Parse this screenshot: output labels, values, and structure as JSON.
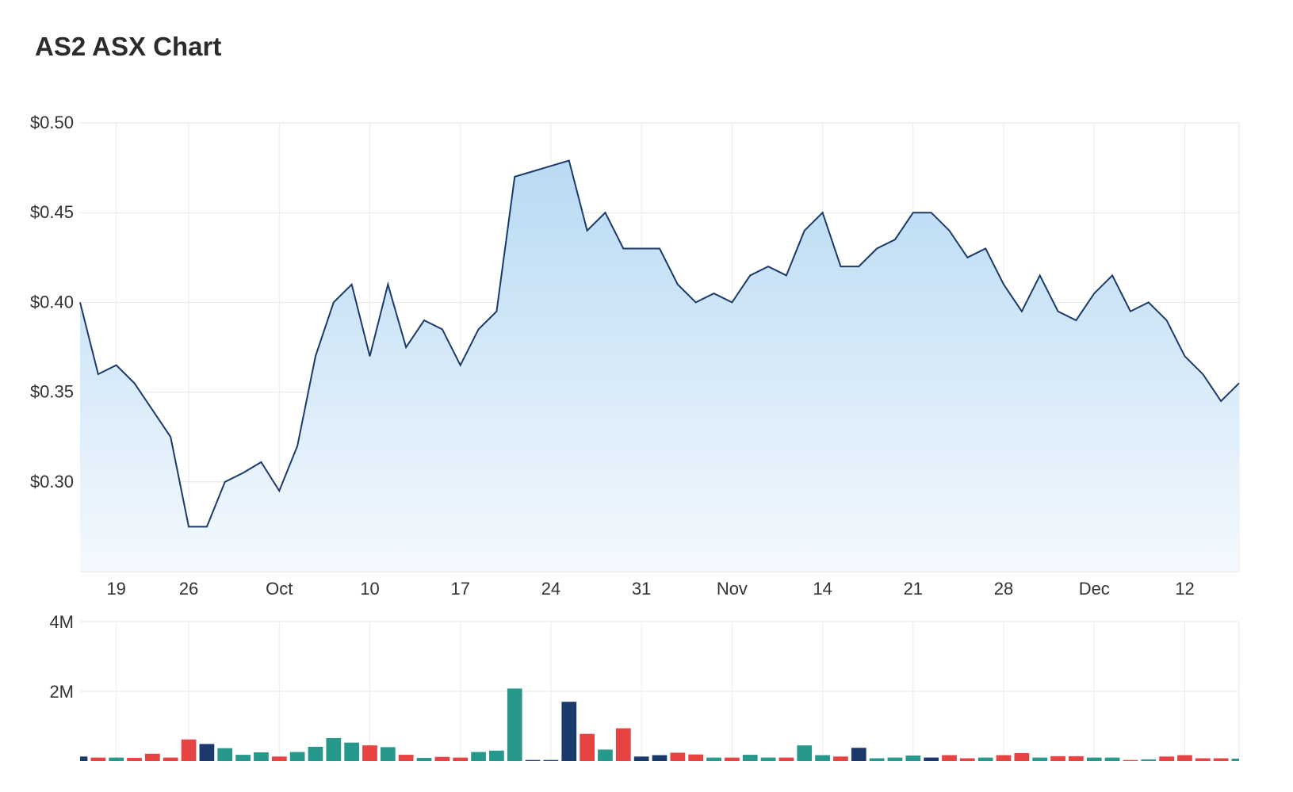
{
  "page": {
    "title": "AS2 ASX Chart"
  },
  "chart_data": [
    {
      "type": "area",
      "ylim": [
        0.25,
        0.5
      ],
      "yticks": [
        {
          "value": 0.5,
          "label": "$0.50"
        },
        {
          "value": 0.45,
          "label": "$0.45"
        },
        {
          "value": 0.4,
          "label": "$0.40"
        },
        {
          "value": 0.35,
          "label": "$0.35"
        },
        {
          "value": 0.3,
          "label": "$0.30"
        }
      ],
      "xticks": [
        {
          "index": 2,
          "label": "19"
        },
        {
          "index": 6,
          "label": "26"
        },
        {
          "index": 11,
          "label": "Oct"
        },
        {
          "index": 16,
          "label": "10"
        },
        {
          "index": 21,
          "label": "17"
        },
        {
          "index": 26,
          "label": "24"
        },
        {
          "index": 31,
          "label": "31"
        },
        {
          "index": 36,
          "label": "Nov"
        },
        {
          "index": 41,
          "label": "14"
        },
        {
          "index": 46,
          "label": "21"
        },
        {
          "index": 51,
          "label": "28"
        },
        {
          "index": 56,
          "label": "Dec"
        },
        {
          "index": 61,
          "label": "12"
        }
      ],
      "grid": true,
      "colors": {
        "line": "#1a3a6b",
        "fill_top": "#b9daf3",
        "fill_bottom": "#f4f9fe"
      },
      "series": [
        {
          "values": [
            0.4,
            0.36,
            0.365,
            0.355,
            0.34,
            0.325,
            0.275,
            0.275,
            0.3,
            0.305,
            0.311,
            0.295,
            0.32,
            0.37,
            0.4,
            0.41,
            0.37,
            0.41,
            0.375,
            0.39,
            0.385,
            0.365,
            0.385,
            0.395,
            0.47,
            0.473,
            0.476,
            0.479,
            0.44,
            0.45,
            0.43,
            0.43,
            0.43,
            0.41,
            0.4,
            0.405,
            0.4,
            0.415,
            0.42,
            0.415,
            0.44,
            0.45,
            0.42,
            0.42,
            0.43,
            0.435,
            0.45,
            0.45,
            0.44,
            0.425,
            0.43,
            0.41,
            0.395,
            0.415,
            0.395,
            0.39,
            0.405,
            0.415,
            0.395,
            0.4,
            0.39,
            0.37,
            0.36,
            0.345,
            0.355
          ]
        }
      ]
    },
    {
      "type": "bar",
      "ylim": [
        0,
        4000000
      ],
      "yticks": [
        {
          "value": 4000000,
          "label": "4M"
        },
        {
          "value": 2000000,
          "label": "2M"
        }
      ],
      "grid": true,
      "colors": {
        "up": "#26998c",
        "down": "#e84343",
        "flat": "#1a3a6b"
      },
      "series": [
        {
          "values": [
            130000,
            100000,
            100000,
            90000,
            210000,
            100000,
            620000,
            490000,
            370000,
            180000,
            250000,
            130000,
            260000,
            410000,
            660000,
            530000,
            450000,
            400000,
            180000,
            90000,
            120000,
            100000,
            260000,
            300000,
            2080000,
            30000,
            30000,
            1700000,
            780000,
            330000,
            940000,
            130000,
            170000,
            240000,
            190000,
            100000,
            100000,
            180000,
            100000,
            100000,
            450000,
            170000,
            130000,
            380000,
            80000,
            100000,
            160000,
            100000,
            170000,
            80000,
            100000,
            170000,
            230000,
            100000,
            140000,
            140000,
            100000,
            100000,
            30000,
            50000,
            130000,
            170000,
            80000,
            80000,
            70000
          ],
          "direction": [
            "flat",
            "down",
            "up",
            "down",
            "down",
            "down",
            "down",
            "flat",
            "up",
            "up",
            "up",
            "down",
            "up",
            "up",
            "up",
            "up",
            "down",
            "up",
            "down",
            "up",
            "down",
            "down",
            "up",
            "up",
            "up",
            "flat",
            "flat",
            "flat",
            "down",
            "up",
            "down",
            "flat",
            "flat",
            "down",
            "down",
            "up",
            "down",
            "up",
            "up",
            "down",
            "up",
            "up",
            "down",
            "flat",
            "up",
            "up",
            "up",
            "flat",
            "down",
            "down",
            "up",
            "down",
            "down",
            "up",
            "down",
            "down",
            "up",
            "up",
            "down",
            "up",
            "down",
            "down",
            "down",
            "down",
            "up"
          ]
        }
      ]
    }
  ]
}
